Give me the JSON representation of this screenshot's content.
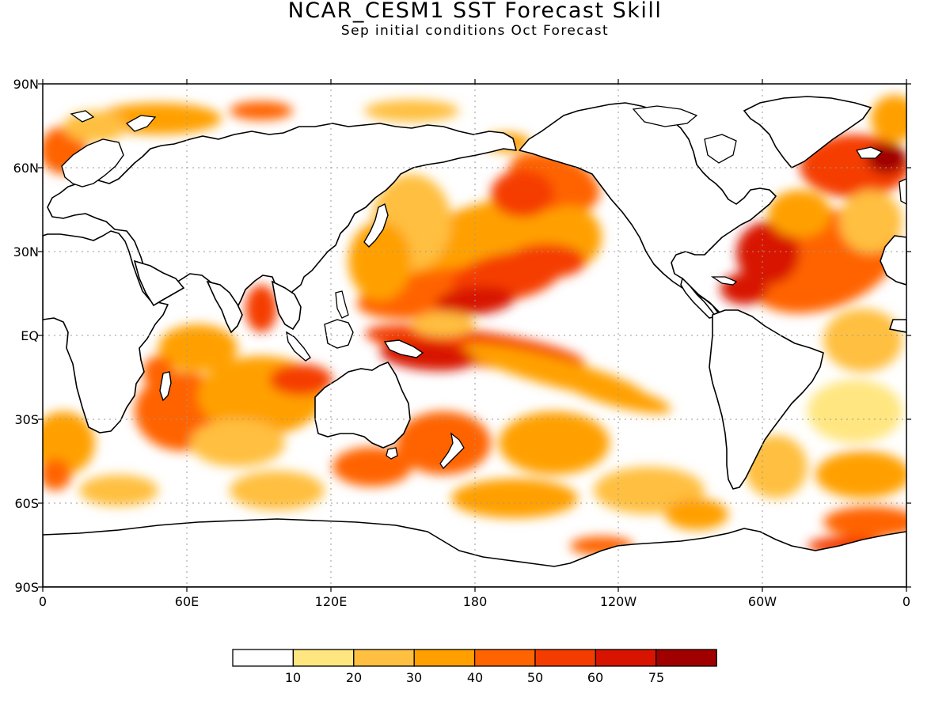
{
  "title": "NCAR_CESM1 SST Forecast Skill",
  "subtitle": "Sep initial conditions  Oct Forecast",
  "map": {
    "y_axis_labels": [
      "90N",
      "60N",
      "30N",
      "EQ",
      "30S",
      "60S",
      "90S"
    ],
    "x_axis_labels": [
      "0",
      "60E",
      "120E",
      "180",
      "120W",
      "60W",
      "0"
    ],
    "grid": true,
    "projection": "cylindrical-equidistant"
  },
  "colorbar": {
    "levels": [
      "10",
      "20",
      "30",
      "40",
      "50",
      "60",
      "75"
    ],
    "colors": [
      "#ffffff",
      "#ffe680",
      "#ffbf40",
      "#ffa000",
      "#ff6400",
      "#f53c00",
      "#d81400",
      "#a00000"
    ]
  },
  "colors": {
    "land_outline": "#000000",
    "ocean_background": "#ffffff"
  }
}
